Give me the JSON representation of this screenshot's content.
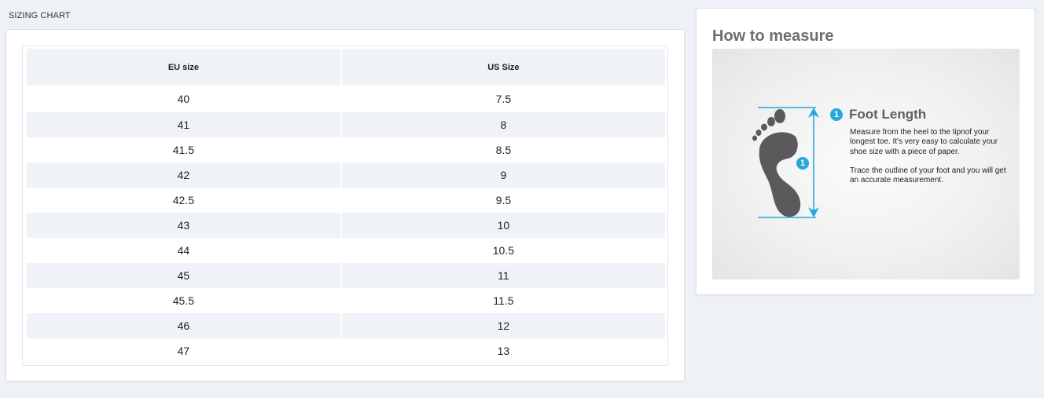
{
  "section_title": "SIZING CHART",
  "sizing_table": {
    "headers": [
      "EU size",
      "US Size"
    ],
    "rows": [
      [
        "40",
        "7.5"
      ],
      [
        "41",
        "8"
      ],
      [
        "41.5",
        "8.5"
      ],
      [
        "42",
        "9"
      ],
      [
        "42.5",
        "9.5"
      ],
      [
        "43",
        "10"
      ],
      [
        "44",
        "10.5"
      ],
      [
        "45",
        "11"
      ],
      [
        "45.5",
        "11.5"
      ],
      [
        "46",
        "12"
      ],
      [
        "47",
        "13"
      ]
    ]
  },
  "how_to_measure": {
    "title": "How to measure",
    "image": {
      "step_number": "1",
      "heading": "Foot Length",
      "paragraph_1": "Measure from the heel to the tipnof your longest toe. It's very easy to calculate your shoe size with a piece of paper.",
      "paragraph_2": "Trace the outline of your foot and you will get an accurate measurement.",
      "accent_color": "#27a7dc",
      "foot_color": "#5a5a5c"
    }
  }
}
